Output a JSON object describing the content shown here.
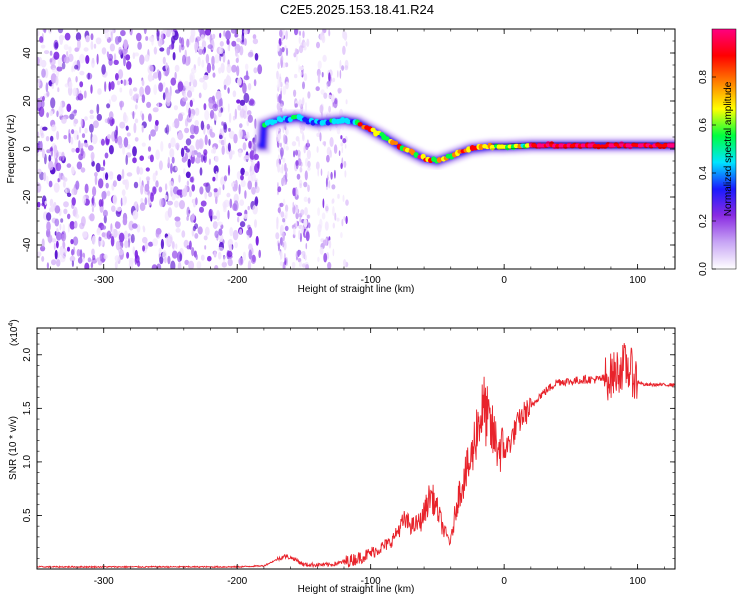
{
  "title": "C2E5.2025.153.18.41.R24",
  "chart_data": [
    {
      "type": "heatmap",
      "xlabel": "Height of straight line (km)",
      "ylabel": "Frequency (Hz)",
      "xlim": [
        -350,
        128
      ],
      "ylim": [
        -50,
        50
      ],
      "x_ticks": [
        -300,
        -200,
        -100,
        0,
        100
      ],
      "y_ticks": [
        -40,
        -20,
        0,
        20,
        40
      ],
      "colorbar": {
        "label": "Normalized spectral amplitude",
        "range": [
          0,
          1
        ],
        "ticks": [
          "0.0",
          "0.2",
          "0.4",
          "0.6",
          "0.8"
        ],
        "tick_values": [
          0,
          0.2,
          0.4,
          0.6,
          0.8
        ],
        "colors": [
          "#ffffff",
          "#c8a6f5",
          "#8a2be2",
          "#1a1aff",
          "#00e5ff",
          "#00ff40",
          "#ffff00",
          "#ff8000",
          "#ff0000",
          "#ff0080"
        ]
      },
      "noise_region_km": [
        -350,
        -183
      ],
      "scatter_region_km": [
        -170,
        -115
      ],
      "ridge": [
        {
          "x": -180,
          "f": 10
        },
        {
          "x": -170,
          "f": 12
        },
        {
          "x": -155,
          "f": 13
        },
        {
          "x": -140,
          "f": 11
        },
        {
          "x": -120,
          "f": 12
        },
        {
          "x": -110,
          "f": 11
        },
        {
          "x": -100,
          "f": 8
        },
        {
          "x": -90,
          "f": 5
        },
        {
          "x": -75,
          "f": 0
        },
        {
          "x": -60,
          "f": -4
        },
        {
          "x": -50,
          "f": -5
        },
        {
          "x": -40,
          "f": -3
        },
        {
          "x": -25,
          "f": 0
        },
        {
          "x": -10,
          "f": 1
        },
        {
          "x": 0,
          "f": 1
        },
        {
          "x": 20,
          "f": 1.5
        },
        {
          "x": 60,
          "f": 1.5
        },
        {
          "x": 100,
          "f": 1.5
        },
        {
          "x": 128,
          "f": 1.5
        }
      ]
    },
    {
      "type": "line",
      "xlabel": "Height of straight line (km)",
      "ylabel": "SNR (10 * v/v)",
      "y_multiplier": "(x10",
      "y_multiplier_exp": "4",
      "y_multiplier_close": ")",
      "xlim": [
        -350,
        128
      ],
      "ylim": [
        0,
        2.25
      ],
      "x_ticks": [
        -300,
        -200,
        -100,
        0,
        100
      ],
      "y_ticks": [
        0.5,
        1.0,
        1.5,
        2.0
      ],
      "y_tick_labels": [
        "0.5",
        "1.0",
        "1.5",
        "2.0"
      ],
      "color": "#e8232b",
      "series": [
        {
          "x": [
            -350,
            -300,
            -250,
            -200,
            -180,
            -165,
            -158,
            -150,
            -130,
            -115,
            -105,
            -95,
            -85,
            -75,
            -68,
            -62,
            -55,
            -50,
            -45,
            -40,
            -35,
            -30,
            -25,
            -20,
            -15,
            -10,
            -5,
            0,
            5,
            10,
            15,
            20,
            25,
            30,
            35,
            40,
            50,
            60,
            70,
            75,
            80,
            85,
            90,
            95,
            100,
            105,
            110,
            115,
            120,
            128
          ],
          "y": [
            0.02,
            0.02,
            0.02,
            0.02,
            0.03,
            0.12,
            0.1,
            0.04,
            0.04,
            0.08,
            0.12,
            0.18,
            0.25,
            0.45,
            0.4,
            0.45,
            0.7,
            0.55,
            0.35,
            0.25,
            0.65,
            0.85,
            1.0,
            1.35,
            1.5,
            1.3,
            1.15,
            1.1,
            1.2,
            1.35,
            1.45,
            1.5,
            1.6,
            1.65,
            1.7,
            1.75,
            1.75,
            1.77,
            1.77,
            1.78,
            1.8,
            1.85,
            1.9,
            1.85,
            1.75,
            1.72,
            1.72,
            1.72,
            1.72,
            1.72
          ]
        }
      ]
    }
  ]
}
